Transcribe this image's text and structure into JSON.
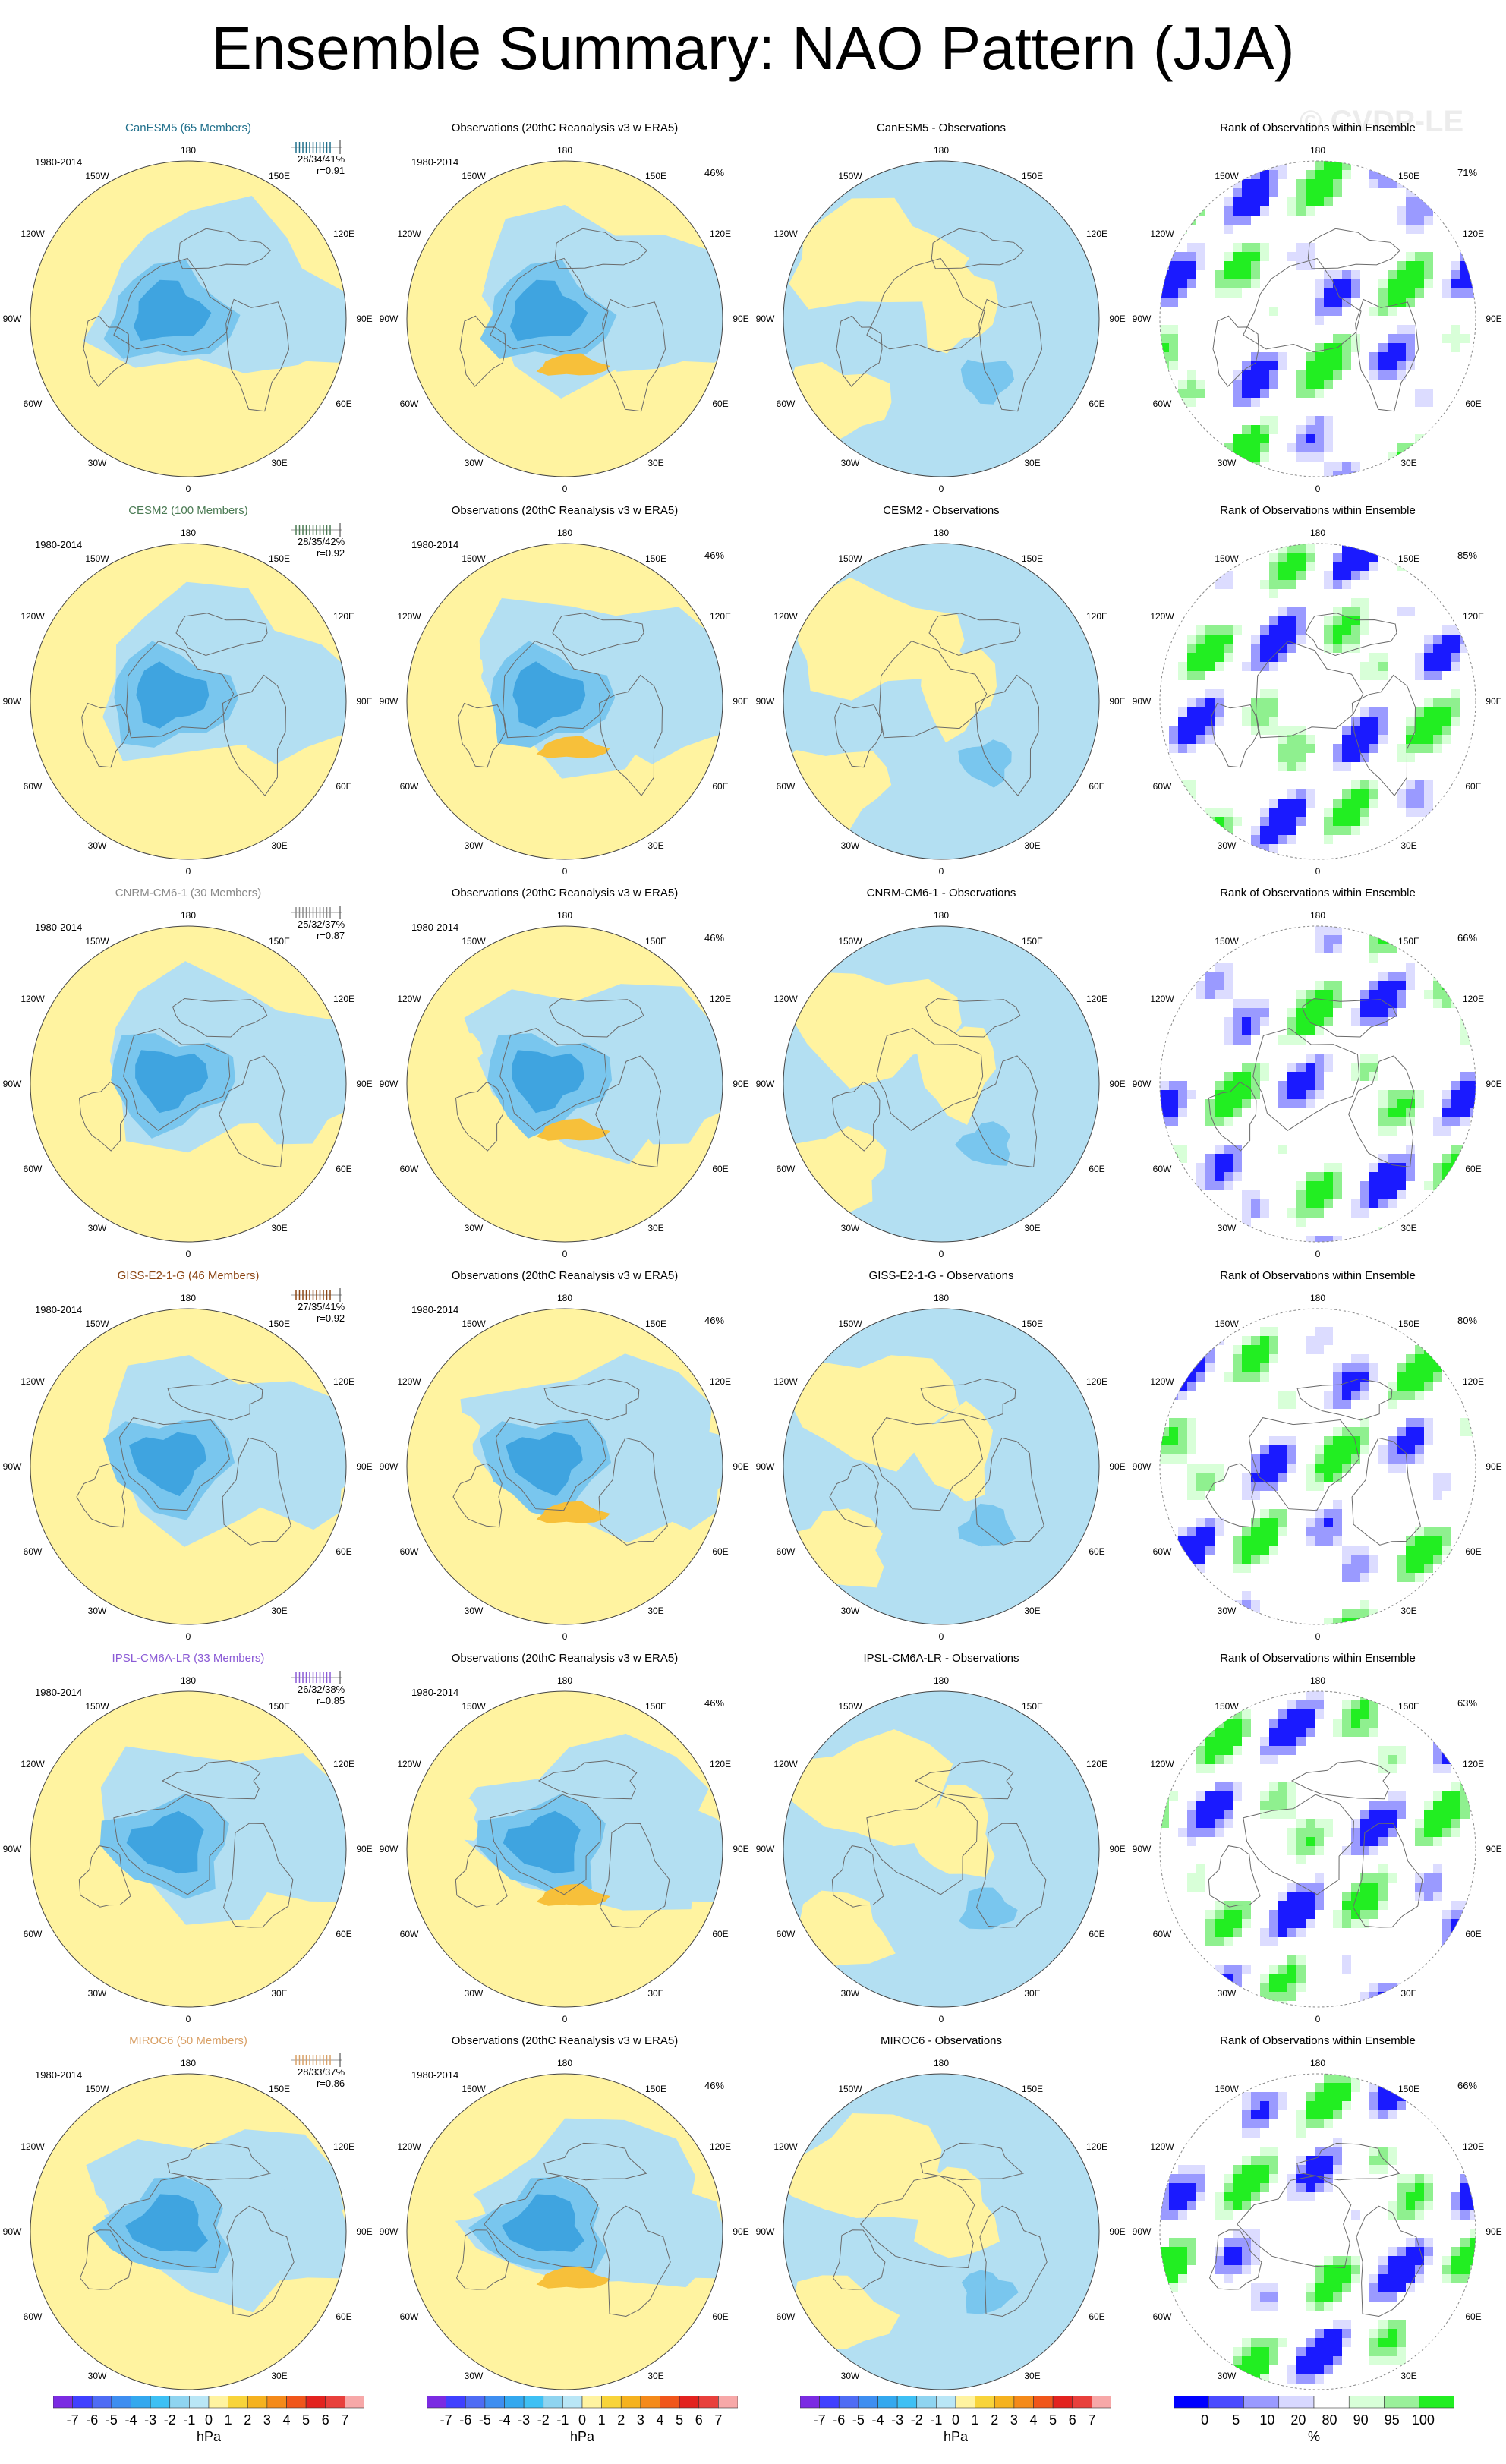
{
  "title": "Ensemble Summary: NAO Pattern (JJA)",
  "watermark": "© CVDP-LE",
  "colors": {
    "land_yellow": "#fff3a0",
    "ocean_blue": "#b3dff2",
    "blue_mid": "#79c6ee",
    "blue_deep": "#3fa4e0",
    "orange": "#f7c03a",
    "rank_blue": "#1a1aff",
    "rank_green": "#22ee22",
    "rank_white": "#ffffff"
  },
  "lon_labels": [
    "180",
    "150E",
    "120E",
    "90E",
    "60E",
    "30E",
    "0",
    "30W",
    "60W",
    "90W",
    "120W",
    "150W"
  ],
  "rows": [
    {
      "model": "CanESM5 (65 Members)",
      "model_color": "#1f6f8b",
      "period": "1980-2014",
      "stats_line1": "28/34/41%",
      "stats_line2": "r=0.91",
      "obs_title": "Observations (20thC Reanalysis v3 w ERA5)",
      "obs_period": "1980-2014",
      "obs_pct": "46%",
      "diff_title": "CanESM5 - Observations",
      "rank_title": "Rank of Observations within Ensemble",
      "rank_pct": "71%"
    },
    {
      "model": "CESM2 (100 Members)",
      "model_color": "#4a7a53",
      "period": "1980-2014",
      "stats_line1": "28/35/42%",
      "stats_line2": "r=0.92",
      "obs_title": "Observations (20thC Reanalysis v3 w ERA5)",
      "obs_period": "1980-2014",
      "obs_pct": "46%",
      "diff_title": "CESM2 - Observations",
      "rank_title": "Rank of Observations within Ensemble",
      "rank_pct": "85%"
    },
    {
      "model": "CNRM-CM6-1 (30 Members)",
      "model_color": "#8a8a8a",
      "period": "1980-2014",
      "stats_line1": "25/32/37%",
      "stats_line2": "r=0.87",
      "obs_title": "Observations (20thC Reanalysis v3 w ERA5)",
      "obs_period": "1980-2014",
      "obs_pct": "46%",
      "diff_title": "CNRM-CM6-1 - Observations",
      "rank_title": "Rank of Observations within Ensemble",
      "rank_pct": "66%"
    },
    {
      "model": "GISS-E2-1-G (46 Members)",
      "model_color": "#8b4513",
      "period": "1980-2014",
      "stats_line1": "27/35/41%",
      "stats_line2": "r=0.92",
      "obs_title": "Observations (20thC Reanalysis v3 w ERA5)",
      "obs_period": "1980-2014",
      "obs_pct": "46%",
      "diff_title": "GISS-E2-1-G - Observations",
      "rank_title": "Rank of Observations within Ensemble",
      "rank_pct": "80%"
    },
    {
      "model": "IPSL-CM6A-LR (33 Members)",
      "model_color": "#8b5bd6",
      "period": "1980-2014",
      "stats_line1": "26/32/38%",
      "stats_line2": "r=0.85",
      "obs_title": "Observations (20thC Reanalysis v3 w ERA5)",
      "obs_period": "1980-2014",
      "obs_pct": "46%",
      "diff_title": "IPSL-CM6A-LR - Observations",
      "rank_title": "Rank of Observations within Ensemble",
      "rank_pct": "63%"
    },
    {
      "model": "MIROC6 (50 Members)",
      "model_color": "#d9a066",
      "period": "1980-2014",
      "stats_line1": "28/33/37%",
      "stats_line2": "r=0.86",
      "obs_title": "Observations (20thC Reanalysis v3 w ERA5)",
      "obs_period": "1980-2014",
      "obs_pct": "46%",
      "diff_title": "MIROC6 - Observations",
      "rank_title": "Rank of Observations within Ensemble",
      "rank_pct": "66%"
    }
  ],
  "hpa_colorbar": {
    "ticks": [
      "-7",
      "-6",
      "-5",
      "-4",
      "-3",
      "-2",
      "-1",
      "0",
      "1",
      "2",
      "3",
      "4",
      "5",
      "6",
      "7"
    ],
    "unit": "hPa",
    "colors": [
      "#7b2be2",
      "#4040ff",
      "#4f6cf4",
      "#3e8ef0",
      "#34a8ee",
      "#3ec0f4",
      "#8fd4f0",
      "#b9e6f6",
      "#fff3a0",
      "#f8d43a",
      "#f5b21f",
      "#f48a1a",
      "#f0561b",
      "#e2231f",
      "#e8403c",
      "#f7a8a8"
    ]
  },
  "rank_colorbar": {
    "ticks": [
      "0",
      "5",
      "10",
      "20",
      "80",
      "90",
      "95",
      "100"
    ],
    "unit": "%",
    "colors": [
      "#0000ff",
      "#4a4aff",
      "#9a9aff",
      "#d8d8ff",
      "#ffffff",
      "#d8ffd8",
      "#9af09a",
      "#22ee22"
    ]
  }
}
